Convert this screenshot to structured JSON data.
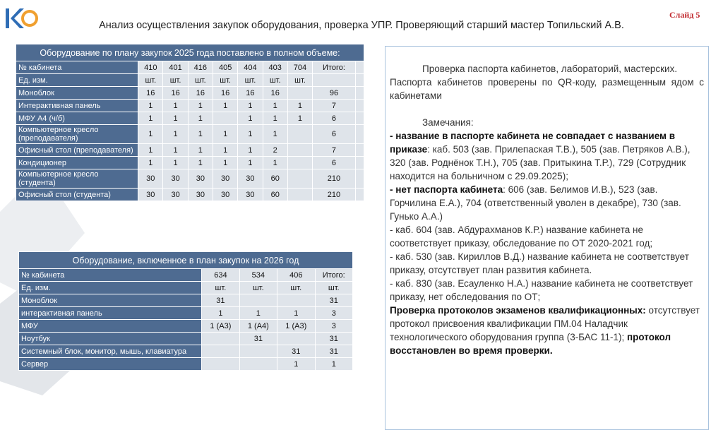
{
  "header": {
    "slide": "Слайд 5",
    "title": "Анализ осуществления закупок оборудования, проверка УПР. Проверяющий старший мастер Топильский А.В."
  },
  "table1": {
    "title": "Оборудование по плану закупок 2025 года поставлено в полном объеме:",
    "header": [
      "№ кабинета",
      "410",
      "401",
      "416",
      "405",
      "404",
      "403",
      "704",
      "Итого:"
    ],
    "rows": [
      [
        "Ед. изм.",
        "шт.",
        "шт.",
        "шт.",
        "шт.",
        "шт.",
        "шт.",
        "шт.",
        null
      ],
      [
        "Моноблок",
        "16",
        "16",
        "16",
        "16",
        "16",
        "16",
        null,
        "96"
      ],
      [
        "Интерактивная панель",
        "1",
        "1",
        "1",
        "1",
        "1",
        "1",
        "1",
        "7"
      ],
      [
        "МФУ А4 (ч/б)",
        "1",
        "1",
        "1",
        null,
        "1",
        "1",
        "1",
        "6"
      ],
      [
        "Компьютерное кресло (преподавателя)",
        "1",
        "1",
        "1",
        "1",
        "1",
        "1",
        null,
        "6"
      ],
      [
        "Офисный стол (преподавателя)",
        "1",
        "1",
        "1",
        "1",
        "1",
        "2",
        null,
        "7"
      ],
      [
        "Кондиционер",
        "1",
        "1",
        "1",
        "1",
        "1",
        "1",
        null,
        "6"
      ],
      [
        "Компьютерное кресло (студента)",
        "30",
        "30",
        "30",
        "30",
        "30",
        "60",
        null,
        "210"
      ],
      [
        "Офисный стол (студента)",
        "30",
        "30",
        "30",
        "30",
        "30",
        "60",
        null,
        "210"
      ]
    ]
  },
  "table2": {
    "title": "Оборудование, включенное в план закупок на 2026 год",
    "header": [
      "№ кабинета",
      "634",
      "534",
      "406",
      "Итого:"
    ],
    "rows": [
      [
        "Ед. изм.",
        "шт.",
        "шт.",
        "шт.",
        "шт."
      ],
      [
        "Моноблок",
        "31",
        null,
        null,
        "31"
      ],
      [
        "интерактивная панель",
        "1",
        "1",
        "1",
        "3"
      ],
      [
        "МФУ",
        "1 (А3)",
        "1 (А4)",
        "1 (А3)",
        "3"
      ],
      [
        "Ноутбук",
        null,
        "31",
        null,
        "31"
      ],
      [
        "Системный блок, монитор, мышь, клавиатура",
        null,
        null,
        "31",
        "31"
      ],
      [
        "Сервер",
        null,
        null,
        "1",
        "1"
      ]
    ]
  },
  "notes": {
    "paragraphs": [
      [
        {
          "text": "Проверка паспорта кабинетов,  лабораторий, мастерских.",
          "bold": false
        }
      ],
      [
        {
          "text": "Паспорта кабинетов проверены по QR-коду, размещенным ядом с кабинетами",
          "bold": false
        }
      ],
      [
        {
          "text": "Замечания:",
          "bold": false
        }
      ],
      [
        {
          "text": "- название в паспорте кабинета  не совпадает с названием в приказе",
          "bold": true
        },
        {
          "text": ": каб. 503 (зав. Прилепаская Т.В.), 505 (зав. Петряков А.В.), 320 (зав. Роднёнок Т.Н.), 705 (зав. Притыкина Т.Р.), 729 (Сотрудник находится на больничном с 29.09.2025);",
          "bold": false
        }
      ],
      [
        {
          "text": "- нет паспорта кабинета",
          "bold": true
        },
        {
          "text": ": 606 (зав.  Белимов И.В.), 523 (зав. Горчилина Е.А.), 704 (ответственный уволен в декабре), 730 (зав. Гунько А.А.)",
          "bold": false
        }
      ],
      [
        {
          "text": "- каб. 604 (зав.  Абдурахманов К.Р.) название кабинета не соответствует приказу, обследование по ОТ 2020-2021 год;",
          "bold": false
        }
      ],
      [
        {
          "text": "- каб. 530 (зав. Кириллов В.Д.) название кабинета не соответствует приказу, отсутствует план развития кабинета.",
          "bold": false
        }
      ],
      [
        {
          "text": "- каб. 830 (зав. Есауленко Н.А.)  название кабинета не соответствует приказу, нет обследования по ОТ;",
          "bold": false
        }
      ],
      [
        {
          "text": "Проверка протоколов экзаменов квалификационных:",
          "bold": true
        },
        {
          "text": " отсутствует протокол присвоения квалификации ПМ.04 Наладчик технологического оборудования группа  (3-БАС 11-1); ",
          "bold": false
        },
        {
          "text": "протокол восстановлен во время проверки.",
          "bold": true
        }
      ]
    ]
  }
}
